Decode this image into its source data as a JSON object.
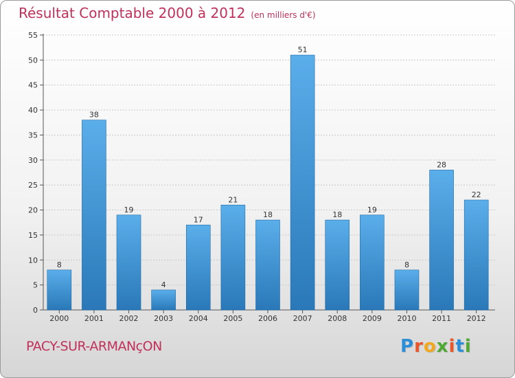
{
  "header": {
    "title": "Résultat Comptable 2000 à 2012",
    "subtitle": "(en milliers d'€)"
  },
  "footer": {
    "city": "PACY-SUR-ARMANçON",
    "logo_letters": [
      "P",
      "r",
      "o",
      "x",
      "i",
      "t",
      "i"
    ],
    "logo_colors": [
      "#2a8fd8",
      "#e8562a",
      "#f2a81d",
      "#4ea832",
      "#e8562a",
      "#2a8fd8",
      "#4ea832"
    ]
  },
  "chart_data": {
    "type": "bar",
    "title": "Résultat Comptable 2000 à 2012",
    "subtitle": "(en milliers d'€)",
    "categories": [
      "2000",
      "2001",
      "2002",
      "2003",
      "2004",
      "2005",
      "2006",
      "2007",
      "2008",
      "2009",
      "2010",
      "2011",
      "2012"
    ],
    "values": [
      8,
      38,
      19,
      4,
      17,
      21,
      18,
      51,
      18,
      19,
      8,
      28,
      22
    ],
    "data_labels": [
      "8",
      "38",
      "19",
      "4",
      "17",
      "21",
      "18",
      "51",
      "18",
      "19",
      "8",
      "28",
      "22"
    ],
    "ylim": [
      0,
      55
    ],
    "yticks": [
      0,
      5,
      10,
      15,
      20,
      25,
      30,
      35,
      40,
      45,
      50,
      55
    ],
    "xlabel": "",
    "ylabel": "",
    "grid": true,
    "bar_color": "#3a93d6"
  }
}
